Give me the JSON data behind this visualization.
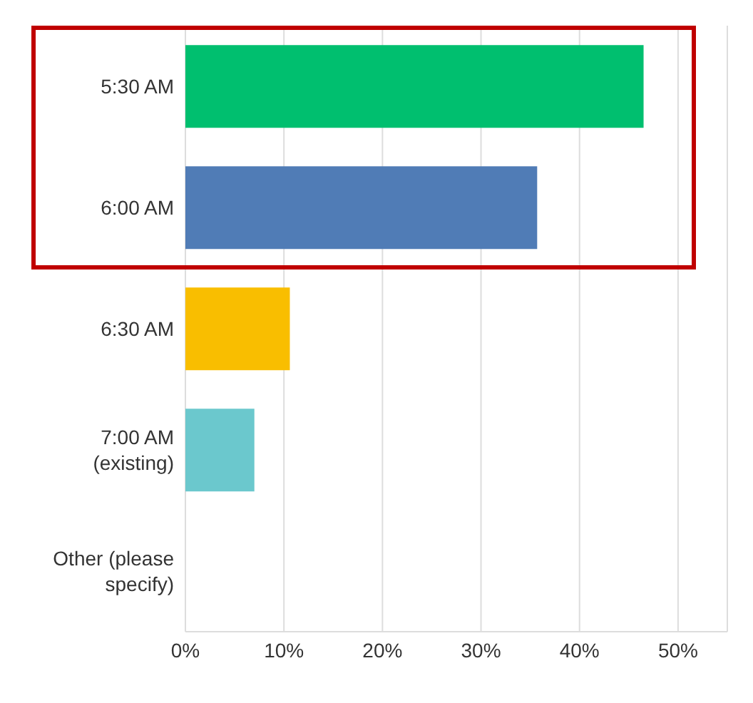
{
  "chart_data": {
    "type": "bar",
    "orientation": "horizontal",
    "categories": [
      "5:30 AM",
      "6:00 AM",
      "6:30 AM",
      "7:00 AM\n(existing)",
      "Other (please\nspecify)"
    ],
    "values": [
      46.5,
      35.7,
      10.6,
      7.0,
      0
    ],
    "colors": [
      "#00bf6f",
      "#507cb6",
      "#f9be00",
      "#6bc8cd",
      "#6bc8cd"
    ],
    "xlim": [
      0,
      55
    ],
    "xticks": [
      {
        "value": 0,
        "label": "0%"
      },
      {
        "value": 10,
        "label": "10%"
      },
      {
        "value": 20,
        "label": "20%"
      },
      {
        "value": 30,
        "label": "30%"
      },
      {
        "value": 40,
        "label": "40%"
      },
      {
        "value": 50,
        "label": "50%"
      }
    ],
    "grid": "x"
  }
}
